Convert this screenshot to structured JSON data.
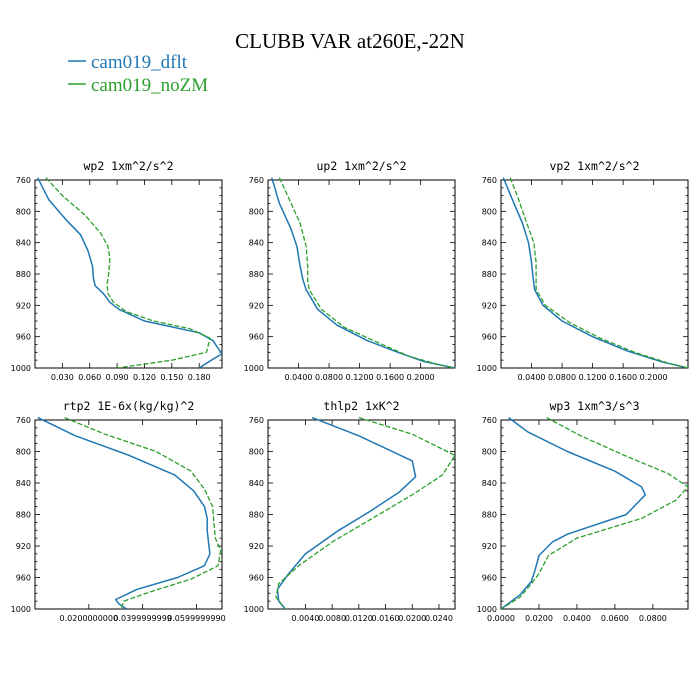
{
  "page_title": "CLUBB VAR at260E,-22N",
  "legend": [
    {
      "label": "cam019_dflt",
      "color": "#1f77b4",
      "dash": "none"
    },
    {
      "label": "cam019_noZM",
      "color": "#2ca02c",
      "dash": "5,2"
    }
  ],
  "chart_data": [
    {
      "type": "line",
      "title": "wp2  1xm^2/s^2",
      "y_reversed": true,
      "ylim": [
        760,
        1000
      ],
      "yticks": [
        760,
        800,
        840,
        880,
        920,
        960,
        1000
      ],
      "xlim": [
        0.0,
        0.205
      ],
      "xticks": [
        0.03,
        0.06,
        0.09,
        0.12,
        0.15,
        0.18
      ],
      "xtick_labels": [
        "0.030",
        "0.060",
        "0.090",
        "0.120",
        "0.150",
        "0.180"
      ],
      "series": [
        {
          "name": "cam019_dflt",
          "points": [
            [
              0.003,
              757
            ],
            [
              0.015,
              785
            ],
            [
              0.035,
              812
            ],
            [
              0.05,
              830
            ],
            [
              0.058,
              850
            ],
            [
              0.063,
              870
            ],
            [
              0.064,
              885
            ],
            [
              0.066,
              895
            ],
            [
              0.075,
              905
            ],
            [
              0.082,
              916
            ],
            [
              0.092,
              925
            ],
            [
              0.12,
              940
            ],
            [
              0.18,
              955
            ],
            [
              0.195,
              965
            ],
            [
              0.205,
              982
            ],
            [
              0.196,
              988
            ],
            [
              0.18,
              1000
            ]
          ]
        },
        {
          "name": "cam019_noZM",
          "points": [
            [
              0.012,
              757
            ],
            [
              0.03,
              780
            ],
            [
              0.055,
              805
            ],
            [
              0.072,
              828
            ],
            [
              0.08,
              845
            ],
            [
              0.082,
              860
            ],
            [
              0.081,
              878
            ],
            [
              0.079,
              893
            ],
            [
              0.08,
              905
            ],
            [
              0.086,
              916
            ],
            [
              0.1,
              928
            ],
            [
              0.13,
              940
            ],
            [
              0.17,
              950
            ],
            [
              0.192,
              962
            ],
            [
              0.188,
              980
            ],
            [
              0.15,
              990
            ],
            [
              0.09,
              1000
            ]
          ]
        }
      ]
    },
    {
      "type": "line",
      "title": "up2  1xm^2/s^2",
      "y_reversed": true,
      "ylim": [
        760,
        1000
      ],
      "yticks": [
        760,
        800,
        840,
        880,
        920,
        960,
        1000
      ],
      "xlim": [
        0.0,
        0.245
      ],
      "xticks": [
        0.04,
        0.08,
        0.12,
        0.16,
        0.2
      ],
      "xtick_labels": [
        "0.0400",
        "0.0800",
        "0.1200",
        "0.1600",
        "0.2000"
      ],
      "series": [
        {
          "name": "cam019_dflt",
          "points": [
            [
              0.005,
              757
            ],
            [
              0.015,
              790
            ],
            [
              0.03,
              822
            ],
            [
              0.038,
              845
            ],
            [
              0.042,
              870
            ],
            [
              0.046,
              888
            ],
            [
              0.05,
              900
            ],
            [
              0.065,
              925
            ],
            [
              0.09,
              945
            ],
            [
              0.13,
              965
            ],
            [
              0.17,
              980
            ],
            [
              0.205,
              992
            ],
            [
              0.245,
              1000
            ]
          ]
        },
        {
          "name": "cam019_noZM",
          "points": [
            [
              0.015,
              757
            ],
            [
              0.028,
              785
            ],
            [
              0.042,
              815
            ],
            [
              0.05,
              845
            ],
            [
              0.052,
              870
            ],
            [
              0.052,
              888
            ],
            [
              0.054,
              900
            ],
            [
              0.07,
              925
            ],
            [
              0.1,
              948
            ],
            [
              0.145,
              968
            ],
            [
              0.185,
              985
            ],
            [
              0.225,
              996
            ],
            [
              0.245,
              1000
            ]
          ]
        }
      ]
    },
    {
      "type": "line",
      "title": "vp2  1xm^2/s^2",
      "y_reversed": true,
      "ylim": [
        760,
        1000
      ],
      "yticks": [
        760,
        800,
        840,
        880,
        920,
        960,
        1000
      ],
      "xlim": [
        0.0,
        0.245
      ],
      "xticks": [
        0.04,
        0.08,
        0.12,
        0.16,
        0.2
      ],
      "xtick_labels": [
        "0.0400",
        "0.0800",
        "0.1200",
        "0.1600",
        "0.2000"
      ],
      "series": [
        {
          "name": "cam019_dflt",
          "points": [
            [
              0.003,
              757
            ],
            [
              0.015,
              785
            ],
            [
              0.028,
              815
            ],
            [
              0.036,
              840
            ],
            [
              0.04,
              865
            ],
            [
              0.042,
              885
            ],
            [
              0.044,
              900
            ],
            [
              0.055,
              920
            ],
            [
              0.08,
              940
            ],
            [
              0.12,
              960
            ],
            [
              0.165,
              978
            ],
            [
              0.21,
              992
            ],
            [
              0.245,
              1000
            ]
          ]
        },
        {
          "name": "cam019_noZM",
          "points": [
            [
              0.012,
              757
            ],
            [
              0.022,
              782
            ],
            [
              0.032,
              810
            ],
            [
              0.043,
              840
            ],
            [
              0.046,
              865
            ],
            [
              0.046,
              885
            ],
            [
              0.046,
              900
            ],
            [
              0.058,
              920
            ],
            [
              0.09,
              942
            ],
            [
              0.13,
              962
            ],
            [
              0.175,
              980
            ],
            [
              0.22,
              994
            ],
            [
              0.245,
              1000
            ]
          ]
        }
      ]
    },
    {
      "type": "line",
      "title": "rtp2  1E-6x(kg/kg)^2",
      "y_reversed": true,
      "ylim": [
        760,
        1000
      ],
      "yticks": [
        760,
        800,
        840,
        880,
        920,
        960,
        1000
      ],
      "xlim": [
        0.0,
        0.0695
      ],
      "xticks": [
        0.02,
        0.04,
        0.06
      ],
      "xtick_labels": [
        "0.0200000000",
        "0.0399999999",
        "0.0599999990"
      ],
      "series": [
        {
          "name": "cam019_dflt",
          "points": [
            [
              0.001,
              757
            ],
            [
              0.015,
              780
            ],
            [
              0.035,
              805
            ],
            [
              0.052,
              830
            ],
            [
              0.059,
              850
            ],
            [
              0.063,
              870
            ],
            [
              0.064,
              885
            ],
            [
              0.064,
              900
            ],
            [
              0.0645,
              915
            ],
            [
              0.065,
              930
            ],
            [
              0.063,
              945
            ],
            [
              0.053,
              960
            ],
            [
              0.038,
              975
            ],
            [
              0.03,
              988
            ],
            [
              0.031,
              993
            ],
            [
              0.034,
              1000
            ]
          ]
        },
        {
          "name": "cam019_noZM",
          "points": [
            [
              0.011,
              757
            ],
            [
              0.026,
              778
            ],
            [
              0.045,
              800
            ],
            [
              0.058,
              825
            ],
            [
              0.063,
              848
            ],
            [
              0.066,
              870
            ],
            [
              0.0665,
              890
            ],
            [
              0.067,
              910
            ],
            [
              0.069,
              925
            ],
            [
              0.068,
              945
            ],
            [
              0.058,
              962
            ],
            [
              0.043,
              978
            ],
            [
              0.033,
              990
            ],
            [
              0.032,
              1000
            ]
          ]
        }
      ]
    },
    {
      "type": "line",
      "title": "thlp2  1xK^2",
      "y_reversed": true,
      "ylim": [
        760,
        1000
      ],
      "yticks": [
        760,
        800,
        840,
        880,
        920,
        960,
        1000
      ],
      "xlim": [
        -0.0016,
        0.0264
      ],
      "xticks": [
        0.004,
        0.008,
        0.012,
        0.016,
        0.02,
        0.024
      ],
      "xtick_labels": [
        "0.0040",
        "0.0080",
        "0.0120",
        "0.0160",
        "0.0200",
        "0.0240"
      ],
      "series": [
        {
          "name": "cam019_dflt",
          "points": [
            [
              0.005,
              757
            ],
            [
              0.012,
              780
            ],
            [
              0.02,
              812
            ],
            [
              0.0205,
              832
            ],
            [
              0.018,
              852
            ],
            [
              0.0135,
              877
            ],
            [
              0.009,
              900
            ],
            [
              0.004,
              930
            ],
            [
              0.0015,
              955
            ],
            [
              -0.0002,
              975
            ],
            [
              0.0,
              990
            ],
            [
              0.001,
              1000
            ]
          ]
        },
        {
          "name": "cam019_noZM",
          "points": [
            [
              0.012,
              757
            ],
            [
              0.02,
              778
            ],
            [
              0.0264,
              805
            ],
            [
              0.0245,
              830
            ],
            [
              0.02,
              855
            ],
            [
              0.014,
              885
            ],
            [
              0.008,
              915
            ],
            [
              0.003,
              945
            ],
            [
              0.0,
              968
            ],
            [
              -0.0004,
              985
            ],
            [
              0.001,
              1000
            ]
          ]
        }
      ]
    },
    {
      "type": "line",
      "title": "wp3  1xm^3/s^3",
      "y_reversed": true,
      "ylim": [
        760,
        1000
      ],
      "yticks": [
        760,
        800,
        840,
        880,
        920,
        960,
        1000
      ],
      "xlim": [
        0.0,
        0.0985
      ],
      "xticks": [
        0.0,
        0.02,
        0.04,
        0.06,
        0.08
      ],
      "xtick_labels": [
        "0.0000",
        "0.0200",
        "0.0400",
        "0.0600",
        "0.0800"
      ],
      "series": [
        {
          "name": "cam019_dflt",
          "points": [
            [
              0.004,
              757
            ],
            [
              0.014,
              775
            ],
            [
              0.035,
              800
            ],
            [
              0.06,
              825
            ],
            [
              0.074,
              845
            ],
            [
              0.076,
              855
            ],
            [
              0.066,
              880
            ],
            [
              0.035,
              905
            ],
            [
              0.027,
              915
            ],
            [
              0.02,
              932
            ],
            [
              0.018,
              950
            ],
            [
              0.016,
              965
            ],
            [
              0.01,
              982
            ],
            [
              0.0,
              1000
            ]
          ]
        },
        {
          "name": "cam019_noZM",
          "points": [
            [
              0.024,
              757
            ],
            [
              0.042,
              780
            ],
            [
              0.065,
              805
            ],
            [
              0.088,
              828
            ],
            [
              0.0985,
              845
            ],
            [
              0.092,
              862
            ],
            [
              0.074,
              885
            ],
            [
              0.04,
              910
            ],
            [
              0.025,
              932
            ],
            [
              0.02,
              955
            ],
            [
              0.016,
              968
            ],
            [
              0.01,
              985
            ],
            [
              0.0,
              1000
            ]
          ]
        }
      ]
    }
  ]
}
